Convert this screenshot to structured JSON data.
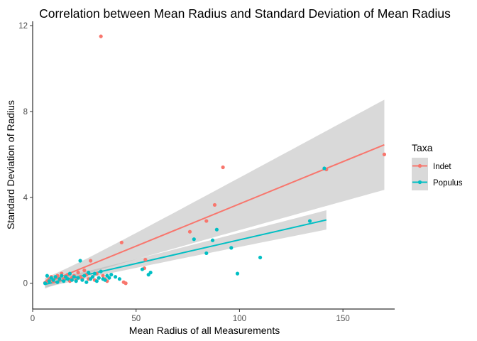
{
  "chart_data": {
    "type": "scatter",
    "title": "Correlation between Mean Radius and Standard Deviation of Mean Radius",
    "xlabel": "Mean Radius of all Measurements",
    "ylabel": "Standard Deviation of Radius",
    "xlim": [
      0,
      175
    ],
    "ylim": [
      -1.2,
      12.2
    ],
    "x_ticks": [
      0,
      50,
      100,
      150
    ],
    "y_ticks": [
      0,
      4,
      8,
      12
    ],
    "grid": false,
    "legend": {
      "title": "Taxa",
      "position": "right"
    },
    "series": [
      {
        "name": "Indet",
        "color": "#F8766D",
        "points": [
          [
            6,
            0.02
          ],
          [
            7,
            0.1
          ],
          [
            8,
            0.2
          ],
          [
            9,
            0.3
          ],
          [
            10,
            0.08
          ],
          [
            11,
            0.25
          ],
          [
            12,
            0.35
          ],
          [
            13,
            0.15
          ],
          [
            14,
            0.45
          ],
          [
            15,
            0.2
          ],
          [
            16,
            0.3
          ],
          [
            17,
            0.4
          ],
          [
            18,
            0.1
          ],
          [
            19,
            0.25
          ],
          [
            20,
            0.35
          ],
          [
            21,
            0.15
          ],
          [
            22,
            0.5
          ],
          [
            23,
            0.3
          ],
          [
            24,
            0.2
          ],
          [
            25,
            0.6
          ],
          [
            26,
            0.4
          ],
          [
            27,
            0.2
          ],
          [
            28,
            1.05
          ],
          [
            29,
            0.3
          ],
          [
            30,
            0.15
          ],
          [
            31,
            0.45
          ],
          [
            32,
            0.25
          ],
          [
            33,
            11.5
          ],
          [
            34,
            0.35
          ],
          [
            35,
            0.2
          ],
          [
            36,
            0.1
          ],
          [
            43,
            1.9
          ],
          [
            44,
            0.05
          ],
          [
            45,
            0.0
          ],
          [
            54,
            0.7
          ],
          [
            54.5,
            1.1
          ],
          [
            76,
            2.4
          ],
          [
            84,
            2.9
          ],
          [
            88,
            3.65
          ],
          [
            92,
            5.4
          ],
          [
            142,
            5.3
          ],
          [
            170,
            6.0
          ]
        ],
        "fit": {
          "from": 6,
          "to": 170,
          "y_start": 0.0,
          "y_end": 6.45,
          "ci_start": 0.25,
          "ci_end": 2.1
        }
      },
      {
        "name": "Populus",
        "color": "#00BFC4",
        "points": [
          [
            6,
            0.0
          ],
          [
            7,
            0.35
          ],
          [
            8,
            0.1
          ],
          [
            9,
            0.25
          ],
          [
            10,
            0.15
          ],
          [
            11,
            0.3
          ],
          [
            12,
            0.05
          ],
          [
            13,
            0.2
          ],
          [
            14,
            0.35
          ],
          [
            15,
            0.1
          ],
          [
            16,
            0.3
          ],
          [
            17,
            0.2
          ],
          [
            18,
            0.45
          ],
          [
            19,
            0.15
          ],
          [
            20,
            0.3
          ],
          [
            21,
            0.1
          ],
          [
            22,
            0.25
          ],
          [
            23,
            1.05
          ],
          [
            24,
            0.15
          ],
          [
            25,
            0.35
          ],
          [
            26,
            0.05
          ],
          [
            27,
            0.5
          ],
          [
            28,
            0.2
          ],
          [
            29,
            0.3
          ],
          [
            30,
            0.45
          ],
          [
            31,
            0.1
          ],
          [
            32,
            0.25
          ],
          [
            33,
            0.55
          ],
          [
            34,
            0.2
          ],
          [
            35,
            0.15
          ],
          [
            36,
            0.35
          ],
          [
            37,
            0.25
          ],
          [
            38,
            0.4
          ],
          [
            40,
            0.3
          ],
          [
            42,
            0.2
          ],
          [
            53,
            0.65
          ],
          [
            56,
            0.4
          ],
          [
            57,
            0.5
          ],
          [
            78,
            2.05
          ],
          [
            84,
            1.4
          ],
          [
            87,
            2.0
          ],
          [
            89,
            2.5
          ],
          [
            96,
            1.65
          ],
          [
            99,
            0.45
          ],
          [
            110,
            1.2
          ],
          [
            134,
            2.9
          ],
          [
            141,
            5.35
          ]
        ],
        "fit": {
          "from": 6,
          "to": 142,
          "y_start": -0.05,
          "y_end": 2.95,
          "ci_start": 0.15,
          "ci_end": 0.45
        }
      }
    ]
  }
}
